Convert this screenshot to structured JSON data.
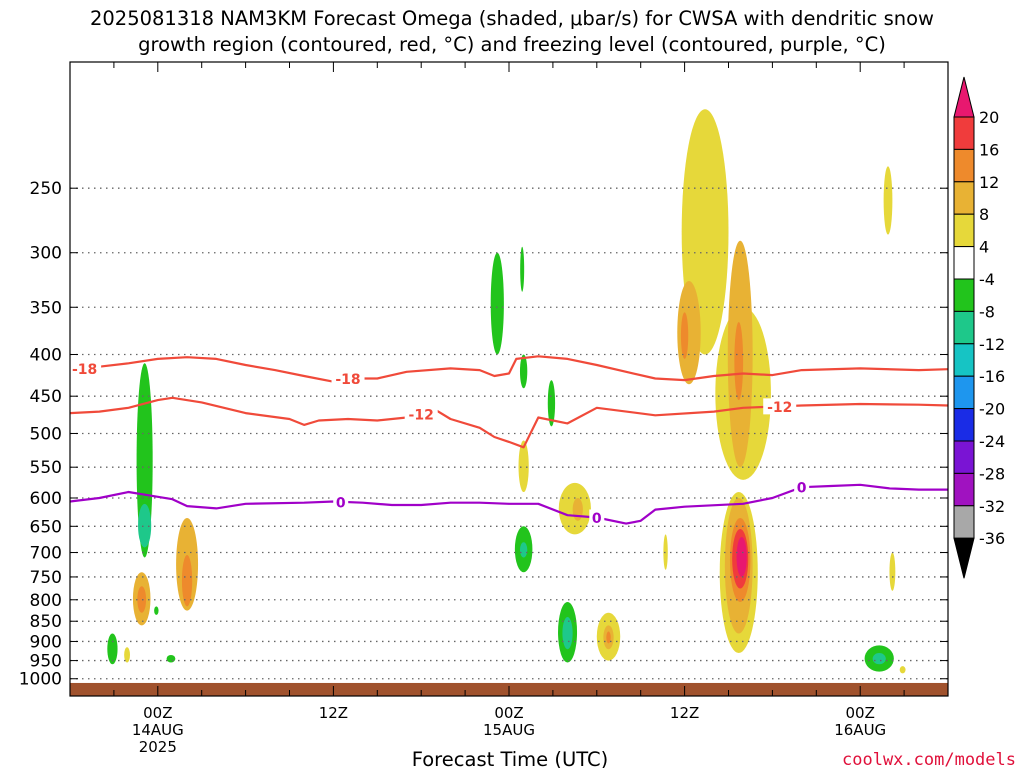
{
  "title_line1": "2025081318 NAM3KM Forecast Omega (shaded, μbar/s) for CWSA with dendritic snow",
  "title_line2": "growth region (contoured, red, °C) and freezing level (contoured, purple, °C)",
  "xlabel": "Forecast Time (UTC)",
  "credit": "coolwx.com/models",
  "x_ticks": [
    {
      "hour": 6,
      "label": "00Z",
      "sub1": "14AUG",
      "sub2": "2025"
    },
    {
      "hour": 18,
      "label": "12Z",
      "sub1": "",
      "sub2": ""
    },
    {
      "hour": 30,
      "label": "00Z",
      "sub1": "15AUG",
      "sub2": ""
    },
    {
      "hour": 42,
      "label": "12Z",
      "sub1": "",
      "sub2": ""
    },
    {
      "hour": 54,
      "label": "00Z",
      "sub1": "16AUG",
      "sub2": ""
    }
  ],
  "colors": {
    "dgz": "#f04a3a",
    "freezing": "#a000c8",
    "ground": "#a0522d",
    "grid": "#666666"
  },
  "colorbar": {
    "labels": [
      "20",
      "16",
      "12",
      "8",
      "4",
      "-4",
      "-8",
      "-12",
      "-16",
      "-20",
      "-24",
      "-28",
      "-32",
      "-36"
    ],
    "colors": [
      "#e8186f",
      "#f03c3c",
      "#ee8a2c",
      "#e8b234",
      "#e6d83a",
      "#ffffff",
      "#22c41c",
      "#1ec88a",
      "#16c4c4",
      "#1e96ee",
      "#1a2ce6",
      "#7a14d4",
      "#a012c0",
      "#a8a8a8"
    ]
  },
  "chart_data": {
    "type": "heatmap",
    "xlim": [
      0,
      60
    ],
    "ylim": [
      1050,
      175
    ],
    "y_scale": "log",
    "y_ticks": [
      250,
      300,
      350,
      400,
      450,
      500,
      550,
      600,
      650,
      700,
      750,
      800,
      850,
      900,
      950,
      1000
    ],
    "grid": "dotted, every y tick",
    "contours": [
      {
        "value": -18,
        "label": "-18",
        "points": [
          [
            0,
            418
          ],
          [
            1,
            416
          ],
          [
            2,
            414
          ],
          [
            4,
            410
          ],
          [
            6,
            405
          ],
          [
            8,
            403
          ],
          [
            10,
            405
          ],
          [
            12,
            412
          ],
          [
            14,
            418
          ],
          [
            16,
            425
          ],
          [
            18,
            432
          ],
          [
            19,
            428
          ],
          [
            21,
            428
          ],
          [
            23,
            420
          ],
          [
            26,
            416
          ],
          [
            28,
            418
          ],
          [
            29,
            425
          ],
          [
            30,
            422
          ],
          [
            30.5,
            405
          ],
          [
            32,
            402
          ],
          [
            34,
            405
          ],
          [
            36,
            412
          ],
          [
            38,
            420
          ],
          [
            40,
            428
          ],
          [
            42,
            430
          ],
          [
            44,
            425
          ],
          [
            46,
            422
          ],
          [
            48,
            424
          ],
          [
            50,
            418
          ],
          [
            54,
            416
          ],
          [
            58,
            418
          ],
          [
            60,
            417
          ]
        ]
      },
      {
        "value": -12,
        "label": "-12",
        "points": [
          [
            0,
            472
          ],
          [
            2,
            470
          ],
          [
            4,
            465
          ],
          [
            6,
            455
          ],
          [
            7,
            452
          ],
          [
            9,
            458
          ],
          [
            12,
            472
          ],
          [
            15,
            480
          ],
          [
            16,
            488
          ],
          [
            17,
            482
          ],
          [
            19,
            480
          ],
          [
            21,
            482
          ],
          [
            23,
            478
          ],
          [
            25,
            468
          ],
          [
            26,
            480
          ],
          [
            28,
            492
          ],
          [
            29,
            505
          ],
          [
            30,
            512
          ],
          [
            31,
            520
          ],
          [
            32,
            478
          ],
          [
            34,
            486
          ],
          [
            36,
            465
          ],
          [
            40,
            475
          ],
          [
            44,
            470
          ],
          [
            46,
            465
          ],
          [
            50,
            462
          ],
          [
            54,
            460
          ],
          [
            58,
            461
          ],
          [
            60,
            462
          ]
        ]
      },
      {
        "value": 0,
        "label": "0",
        "points": [
          [
            0,
            606
          ],
          [
            2,
            600
          ],
          [
            4,
            590
          ],
          [
            6,
            598
          ],
          [
            7,
            602
          ],
          [
            8,
            614
          ],
          [
            10,
            618
          ],
          [
            12,
            610
          ],
          [
            16,
            608
          ],
          [
            18,
            606
          ],
          [
            20,
            608
          ],
          [
            22,
            612
          ],
          [
            24,
            612
          ],
          [
            26,
            608
          ],
          [
            28,
            608
          ],
          [
            30,
            610
          ],
          [
            32,
            610
          ],
          [
            34,
            630
          ],
          [
            36,
            634
          ],
          [
            38,
            645
          ],
          [
            39,
            640
          ],
          [
            40,
            620
          ],
          [
            42,
            615
          ],
          [
            46,
            610
          ],
          [
            48,
            600
          ],
          [
            50,
            582
          ],
          [
            52,
            580
          ],
          [
            54,
            578
          ],
          [
            56,
            584
          ],
          [
            58,
            586
          ],
          [
            60,
            586
          ]
        ]
      }
    ],
    "omega_regions": [
      {
        "x": 5.1,
        "p": 560,
        "dx": 0.55,
        "dp": 150,
        "value": -8
      },
      {
        "x": 5.1,
        "p": 650,
        "dx": 0.45,
        "dp": 40,
        "value": -12
      },
      {
        "x": 4.9,
        "p": 800,
        "dx": 0.6,
        "dp": 60,
        "value": 8
      },
      {
        "x": 4.9,
        "p": 800,
        "dx": 0.3,
        "dp": 30,
        "value": 12
      },
      {
        "x": 8.0,
        "p": 730,
        "dx": 0.75,
        "dp": 95,
        "value": 8
      },
      {
        "x": 8.0,
        "p": 760,
        "dx": 0.35,
        "dp": 55,
        "value": 12
      },
      {
        "x": 2.9,
        "p": 920,
        "dx": 0.35,
        "dp": 40,
        "value": -8
      },
      {
        "x": 3.9,
        "p": 935,
        "dx": 0.2,
        "dp": 20,
        "value": 4
      },
      {
        "x": 6.9,
        "p": 945,
        "dx": 0.3,
        "dp": 10,
        "value": -8
      },
      {
        "x": 5.9,
        "p": 825,
        "dx": 0.15,
        "dp": 10,
        "value": -8
      },
      {
        "x": 29.2,
        "p": 350,
        "dx": 0.45,
        "dp": 50,
        "value": -8
      },
      {
        "x": 30.9,
        "p": 315,
        "dx": 0.1,
        "dp": 20,
        "value": -8
      },
      {
        "x": 31.0,
        "p": 420,
        "dx": 0.25,
        "dp": 20,
        "value": -8
      },
      {
        "x": 32.9,
        "p": 460,
        "dx": 0.25,
        "dp": 30,
        "value": -8
      },
      {
        "x": 31.0,
        "p": 550,
        "dx": 0.35,
        "dp": 40,
        "value": 4
      },
      {
        "x": 31.0,
        "p": 695,
        "dx": 0.6,
        "dp": 45,
        "value": -8
      },
      {
        "x": 31.0,
        "p": 695,
        "dx": 0.25,
        "dp": 15,
        "value": -12
      },
      {
        "x": 34.5,
        "p": 620,
        "dx": 1.1,
        "dp": 45,
        "value": 4
      },
      {
        "x": 34.7,
        "p": 620,
        "dx": 0.35,
        "dp": 20,
        "value": 8
      },
      {
        "x": 34.0,
        "p": 880,
        "dx": 0.65,
        "dp": 75,
        "value": -8
      },
      {
        "x": 34.0,
        "p": 880,
        "dx": 0.35,
        "dp": 40,
        "value": -12
      },
      {
        "x": 36.8,
        "p": 890,
        "dx": 0.8,
        "dp": 60,
        "value": 4
      },
      {
        "x": 36.8,
        "p": 890,
        "dx": 0.35,
        "dp": 30,
        "value": 8
      },
      {
        "x": 36.8,
        "p": 890,
        "dx": 0.15,
        "dp": 15,
        "value": 12
      },
      {
        "x": 40.7,
        "p": 700,
        "dx": 0.15,
        "dp": 35,
        "value": 4
      },
      {
        "x": 43.4,
        "p": 300,
        "dx": 1.6,
        "dp": 100,
        "value": 4
      },
      {
        "x": 42.3,
        "p": 380,
        "dx": 0.8,
        "dp": 55,
        "value": 8
      },
      {
        "x": 42.0,
        "p": 380,
        "dx": 0.25,
        "dp": 25,
        "value": 12
      },
      {
        "x": 46.0,
        "p": 460,
        "dx": 1.9,
        "dp": 110,
        "value": 4
      },
      {
        "x": 45.8,
        "p": 420,
        "dx": 0.85,
        "dp": 130,
        "value": 8
      },
      {
        "x": 45.7,
        "p": 410,
        "dx": 0.3,
        "dp": 45,
        "value": 12
      },
      {
        "x": 45.7,
        "p": 760,
        "dx": 1.3,
        "dp": 170,
        "value": 4
      },
      {
        "x": 45.7,
        "p": 740,
        "dx": 0.95,
        "dp": 140,
        "value": 8
      },
      {
        "x": 45.8,
        "p": 720,
        "dx": 0.7,
        "dp": 85,
        "value": 12
      },
      {
        "x": 45.8,
        "p": 715,
        "dx": 0.55,
        "dp": 60,
        "value": 16
      },
      {
        "x": 45.9,
        "p": 710,
        "dx": 0.35,
        "dp": 40,
        "value": 20
      },
      {
        "x": 55.9,
        "p": 260,
        "dx": 0.3,
        "dp": 25,
        "value": 4
      },
      {
        "x": 56.2,
        "p": 740,
        "dx": 0.2,
        "dp": 40,
        "value": 4
      },
      {
        "x": 55.3,
        "p": 945,
        "dx": 1.0,
        "dp": 35,
        "value": -8
      },
      {
        "x": 55.3,
        "p": 945,
        "dx": 0.45,
        "dp": 15,
        "value": -12
      },
      {
        "x": 56.9,
        "p": 975,
        "dx": 0.2,
        "dp": 10,
        "value": 4
      }
    ],
    "terrain_p": 1012
  }
}
